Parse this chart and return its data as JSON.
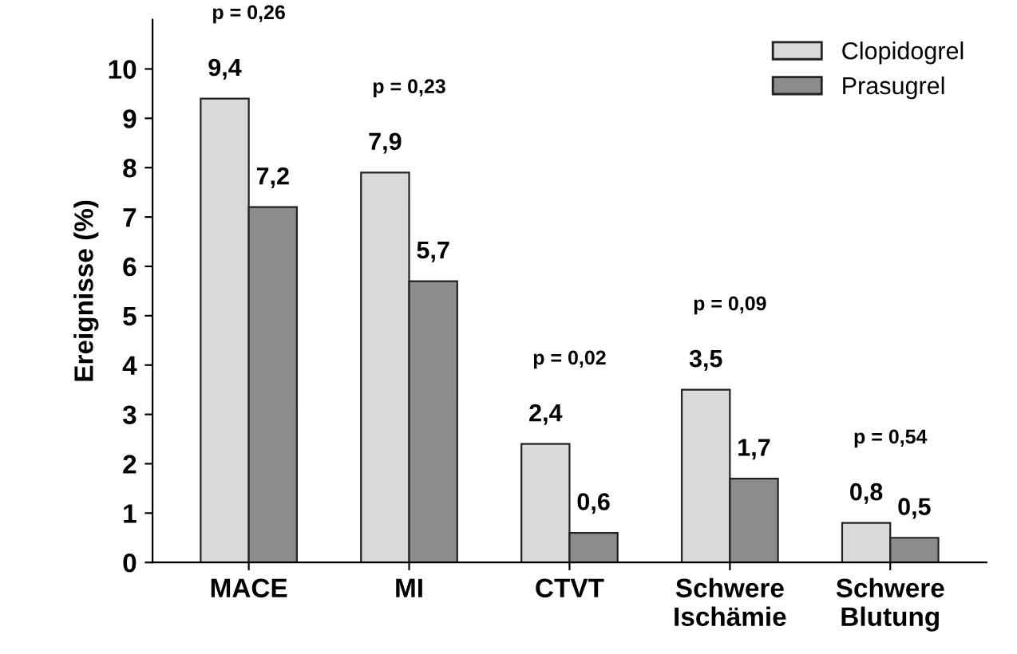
{
  "chart_data": {
    "type": "bar",
    "ylabel": "Ereignisse (%)",
    "categories": [
      "MACE",
      "MI",
      "CTVT",
      "Schwere\nIschämie",
      "Schwere\nBlutung"
    ],
    "series": [
      {
        "name": "Clopidogrel",
        "color": "#d9d9d9",
        "values": [
          9.4,
          7.9,
          2.4,
          3.5,
          0.8
        ],
        "value_labels": [
          "9,4",
          "7,9",
          "2,4",
          "3,5",
          "0,8"
        ]
      },
      {
        "name": "Prasugrel",
        "color": "#8c8c8c",
        "values": [
          7.2,
          5.7,
          0.6,
          1.7,
          0.5
        ],
        "value_labels": [
          "7,2",
          "5,7",
          "0,6",
          "1,7",
          "0,5"
        ]
      }
    ],
    "ylim": [
      0,
      11
    ],
    "yticks": [
      0,
      1,
      2,
      3,
      4,
      5,
      6,
      7,
      8,
      9,
      10
    ],
    "grid": false,
    "legend": "top right",
    "annotations": [
      "p = 0,26",
      "p = 0,23",
      "p = 0,02",
      "p = 0,09",
      "p = 0,54"
    ]
  }
}
